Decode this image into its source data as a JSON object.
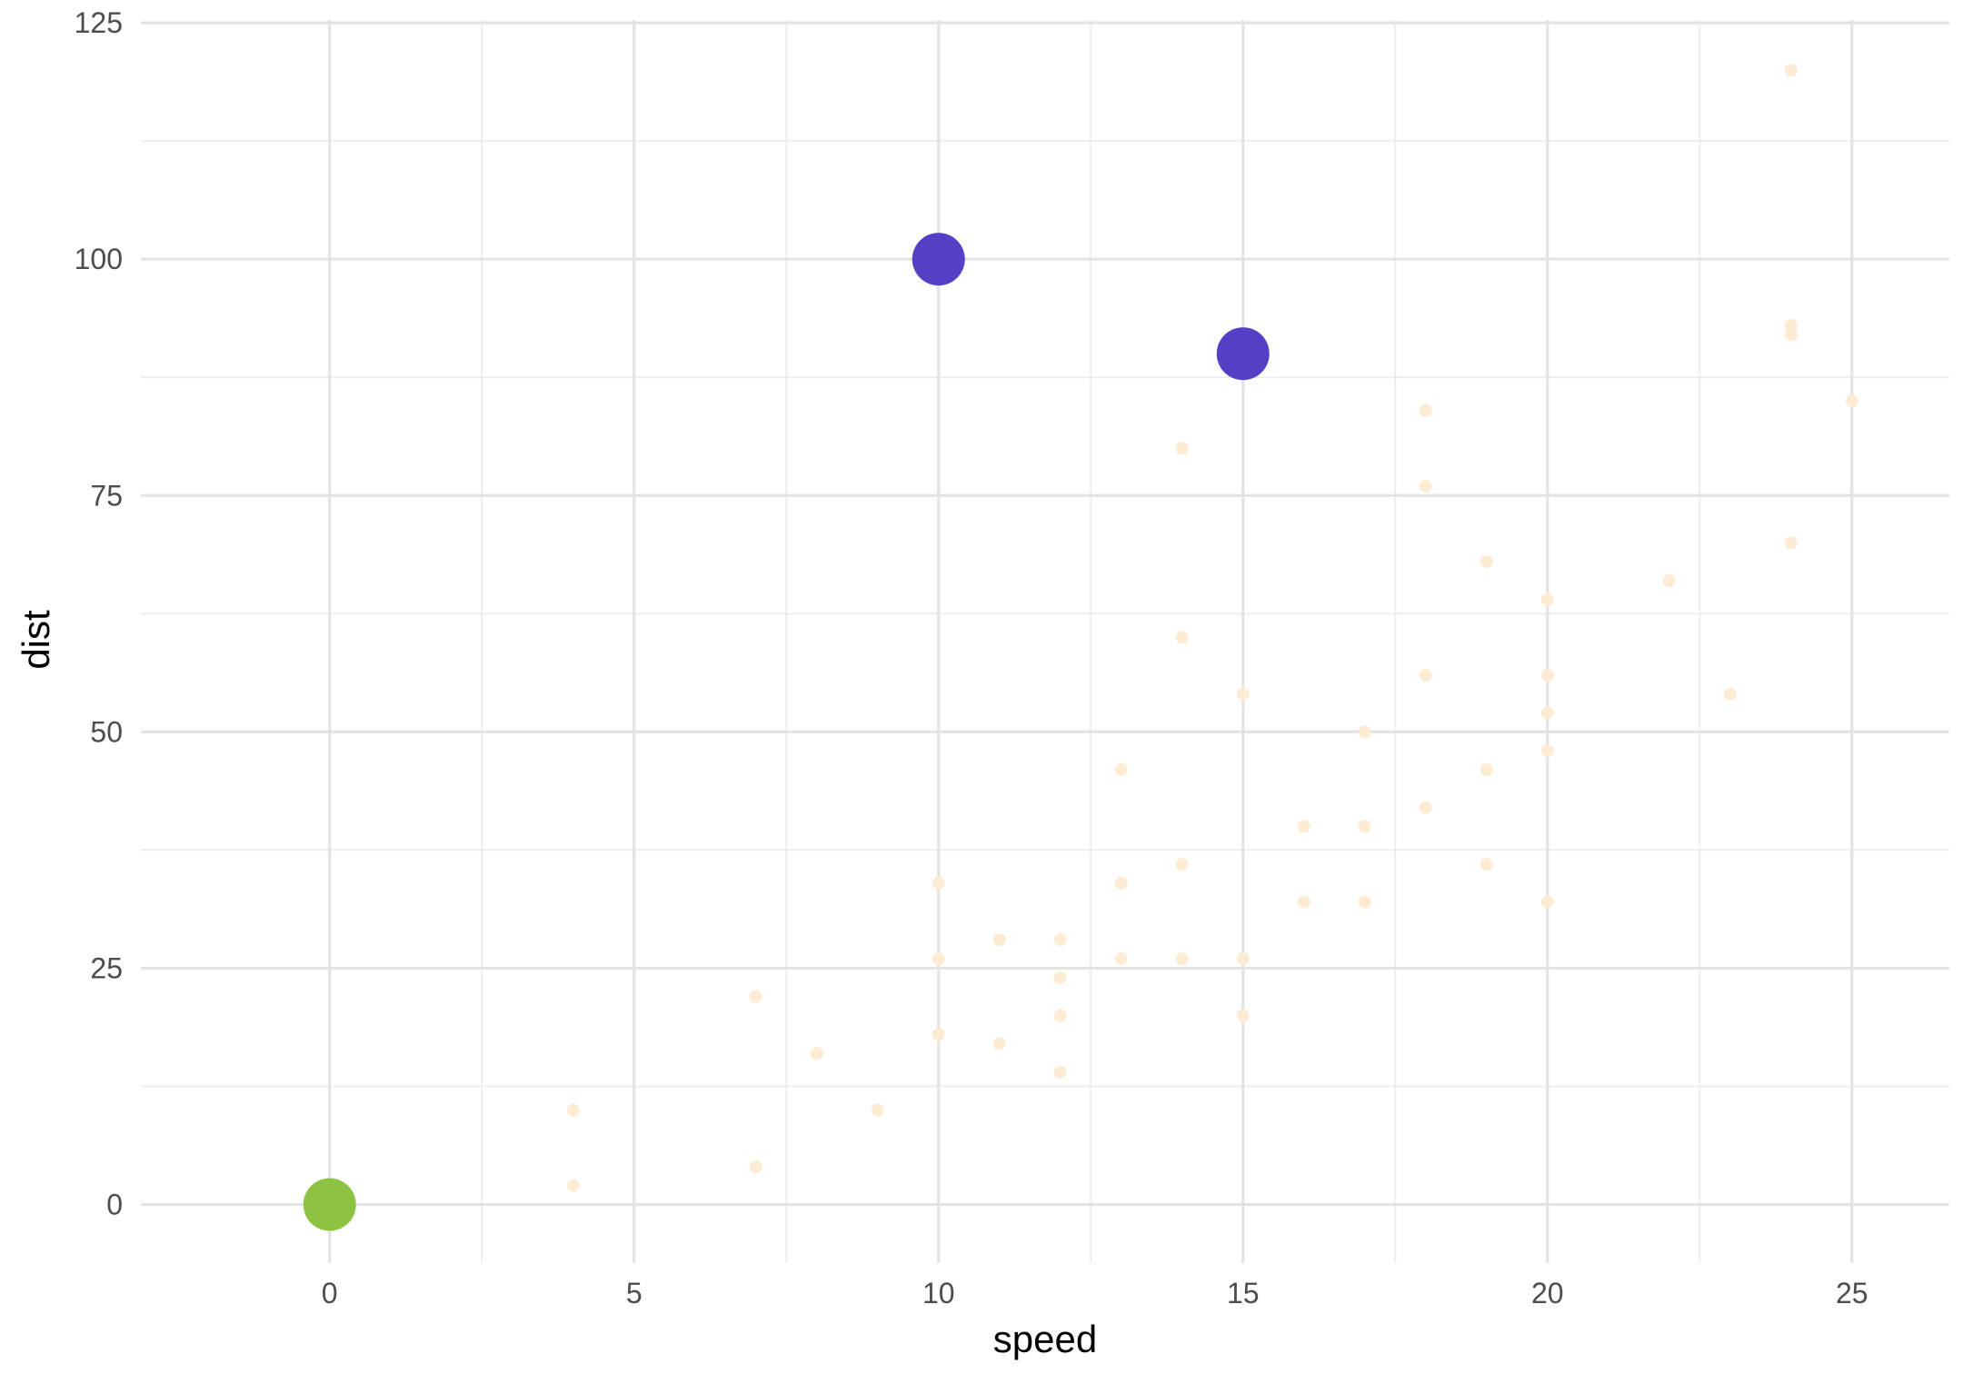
{
  "chart_data": {
    "type": "scatter",
    "xlabel": "speed",
    "ylabel": "dist",
    "xlim": [
      -3.1,
      26.6
    ],
    "ylim": [
      -6.2,
      125.3
    ],
    "x_ticks": [
      0,
      5,
      10,
      15,
      20,
      25
    ],
    "x_tick_labels": [
      "0",
      "5",
      "10",
      "15",
      "20",
      "25"
    ],
    "y_ticks": [
      0,
      25,
      50,
      75,
      100,
      125
    ],
    "y_tick_labels": [
      "0",
      "25",
      "50",
      "75",
      "100",
      "125"
    ],
    "grid": true,
    "legend": "none",
    "colors": {
      "background_points": "#fdebd3",
      "highlight": "#553fc5",
      "origin": "#8dc342"
    },
    "series": [
      {
        "color": "#fdebd3",
        "size": "small",
        "points": [
          [
            4,
            2
          ],
          [
            4,
            10
          ],
          [
            7,
            4
          ],
          [
            7,
            22
          ],
          [
            8,
            16
          ],
          [
            9,
            10
          ],
          [
            10,
            18
          ],
          [
            10,
            26
          ],
          [
            10,
            34
          ],
          [
            11,
            17
          ],
          [
            11,
            28
          ],
          [
            12,
            14
          ],
          [
            12,
            20
          ],
          [
            12,
            24
          ],
          [
            12,
            28
          ],
          [
            13,
            26
          ],
          [
            13,
            34
          ],
          [
            13,
            34
          ],
          [
            13,
            46
          ],
          [
            14,
            26
          ],
          [
            14,
            36
          ],
          [
            14,
            60
          ],
          [
            14,
            80
          ],
          [
            15,
            20
          ],
          [
            15,
            26
          ],
          [
            15,
            54
          ],
          [
            16,
            32
          ],
          [
            16,
            40
          ],
          [
            17,
            32
          ],
          [
            17,
            40
          ],
          [
            17,
            50
          ],
          [
            18,
            42
          ],
          [
            18,
            56
          ],
          [
            18,
            76
          ],
          [
            18,
            84
          ],
          [
            19,
            36
          ],
          [
            19,
            46
          ],
          [
            19,
            68
          ],
          [
            20,
            32
          ],
          [
            20,
            48
          ],
          [
            20,
            52
          ],
          [
            20,
            56
          ],
          [
            20,
            64
          ],
          [
            22,
            66
          ],
          [
            23,
            54
          ],
          [
            24,
            70
          ],
          [
            24,
            92
          ],
          [
            24,
            93
          ],
          [
            24,
            120
          ],
          [
            25,
            85
          ]
        ]
      },
      {
        "color": "#553fc5",
        "size": "large",
        "points": [
          [
            10,
            100
          ],
          [
            15,
            90
          ]
        ]
      },
      {
        "color": "#8dc342",
        "size": "large",
        "points": [
          [
            0,
            0
          ]
        ]
      }
    ]
  }
}
